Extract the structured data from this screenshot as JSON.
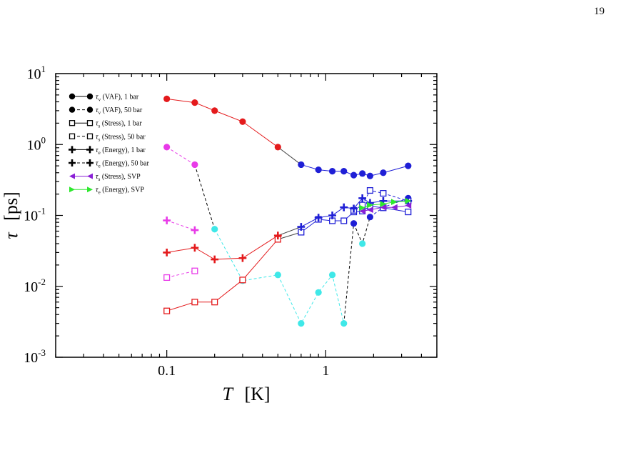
{
  "page": {
    "page_number": "19"
  },
  "colors": {
    "red": "#e41a1c",
    "blue": "#1f1fd6",
    "magenta": "#e83ae8",
    "cyan": "#3fe8e8",
    "purple": "#8a1fd6",
    "green": "#2ee82e",
    "black": "#000000",
    "gray": "#444444"
  },
  "chart_data": {
    "type": "scatter",
    "xlabel": "T",
    "xlabel_unit": "[K]",
    "ylabel": "τ",
    "ylabel_unit": "[ps]",
    "x_scale": "log",
    "y_scale": "log",
    "xlim": [
      0.02,
      5
    ],
    "ylim": [
      0.001,
      10
    ],
    "x_ticks": [
      {
        "value": 0.1,
        "label": "0.1"
      },
      {
        "value": 1,
        "label": "1"
      }
    ],
    "y_ticks": [
      {
        "value": 0.001,
        "base": "10",
        "exp": "-3"
      },
      {
        "value": 0.01,
        "base": "10",
        "exp": "-2"
      },
      {
        "value": 0.1,
        "base": "10",
        "exp": "-1"
      },
      {
        "value": 1,
        "base": "10",
        "exp": "0"
      },
      {
        "value": 10,
        "base": "10",
        "exp": "1"
      }
    ],
    "grid": false,
    "legend_position": "top-left",
    "legend": [
      {
        "sym": "τ",
        "sub": "v",
        "text": "(VAF), 1 bar",
        "marker": "circle",
        "dash": false,
        "color": "#000000"
      },
      {
        "sym": "τ",
        "sub": "v",
        "text": "(VAF), 50 bar",
        "marker": "circle",
        "dash": true,
        "color": "#000000"
      },
      {
        "sym": "τ",
        "sub": "s",
        "text": "(Stress), 1 bar",
        "marker": "square",
        "dash": false,
        "color": "#000000"
      },
      {
        "sym": "τ",
        "sub": "s",
        "text": "(Stress), 50 bar",
        "marker": "square",
        "dash": true,
        "color": "#000000"
      },
      {
        "sym": "τ",
        "sub": "e",
        "text": "(Energy), 1 bar",
        "marker": "plus",
        "dash": false,
        "color": "#000000"
      },
      {
        "sym": "τ",
        "sub": "e",
        "text": "(Energy), 50 bar",
        "marker": "plus",
        "dash": true,
        "color": "#000000"
      },
      {
        "sym": "τ",
        "sub": "s",
        "text": "(Stress), SVP",
        "marker": "tri-left",
        "dash": false,
        "color": "#8a1fd6"
      },
      {
        "sym": "τ",
        "sub": "e",
        "text": "(Energy), SVP",
        "marker": "tri-right",
        "dash": false,
        "color": "#2ee82e"
      }
    ],
    "series": [
      {
        "name": "τv (VAF), 1 bar",
        "marker": "circle",
        "dash": false,
        "line_color": "#444444",
        "points": [
          {
            "x": 0.1,
            "y": 4.4,
            "c": "#e41a1c"
          },
          {
            "x": 0.15,
            "y": 3.9,
            "c": "#e41a1c"
          },
          {
            "x": 0.2,
            "y": 3.0,
            "c": "#e41a1c"
          },
          {
            "x": 0.3,
            "y": 2.1,
            "c": "#e41a1c"
          },
          {
            "x": 0.5,
            "y": 0.92,
            "c": "#e41a1c"
          },
          {
            "x": 0.7,
            "y": 0.52,
            "c": "#1f1fd6"
          },
          {
            "x": 0.9,
            "y": 0.44,
            "c": "#1f1fd6"
          },
          {
            "x": 1.1,
            "y": 0.42,
            "c": "#1f1fd6"
          },
          {
            "x": 1.3,
            "y": 0.42,
            "c": "#1f1fd6"
          },
          {
            "x": 1.5,
            "y": 0.37,
            "c": "#1f1fd6"
          },
          {
            "x": 1.7,
            "y": 0.39,
            "c": "#1f1fd6"
          },
          {
            "x": 1.9,
            "y": 0.36,
            "c": "#1f1fd6"
          },
          {
            "x": 2.3,
            "y": 0.4,
            "c": "#1f1fd6"
          },
          {
            "x": 3.3,
            "y": 0.5,
            "c": "#1f1fd6"
          }
        ],
        "segments": [
          {
            "from": 0,
            "to": 4,
            "color": "#e41a1c"
          },
          {
            "from": 4,
            "to": 5,
            "color": "#444444"
          },
          {
            "from": 5,
            "to": 13,
            "color": "#1f1fd6"
          }
        ]
      },
      {
        "name": "τv (VAF), 50 bar",
        "marker": "circle",
        "dash": true,
        "points": [
          {
            "x": 0.1,
            "y": 0.92,
            "c": "#e83ae8"
          },
          {
            "x": 0.15,
            "y": 0.52,
            "c": "#e83ae8"
          },
          {
            "x": 0.2,
            "y": 0.064,
            "c": "#3fe8e8"
          },
          {
            "x": 0.3,
            "y": 0.012,
            "c": "#3fe8e8"
          },
          {
            "x": 0.5,
            "y": 0.0145,
            "c": "#3fe8e8"
          },
          {
            "x": 0.7,
            "y": 0.003,
            "c": "#3fe8e8"
          },
          {
            "x": 0.9,
            "y": 0.0082,
            "c": "#3fe8e8"
          },
          {
            "x": 1.1,
            "y": 0.0145,
            "c": "#3fe8e8"
          },
          {
            "x": 1.3,
            "y": 0.003,
            "c": "#3fe8e8"
          },
          {
            "x": 1.5,
            "y": 0.077,
            "c": "#1f1fd6"
          },
          {
            "x": 1.7,
            "y": 0.04,
            "c": "#3fe8e8"
          },
          {
            "x": 1.9,
            "y": 0.095,
            "c": "#1f1fd6"
          },
          {
            "x": 2.3,
            "y": 0.13,
            "c": "#1f1fd6"
          },
          {
            "x": 3.3,
            "y": 0.175,
            "c": "#1f1fd6"
          }
        ],
        "segments": [
          {
            "from": 0,
            "to": 1,
            "color": "#e83ae8"
          },
          {
            "from": 1,
            "to": 2,
            "color": "#000000"
          },
          {
            "from": 2,
            "to": 8,
            "color": "#3fe8e8"
          },
          {
            "from": 8,
            "to": 9,
            "color": "#000000"
          },
          {
            "from": 9,
            "to": 11,
            "color": "#000000"
          },
          {
            "from": 11,
            "to": 13,
            "color": "#1f1fd6"
          }
        ]
      },
      {
        "name": "τs (Stress), 1 bar",
        "marker": "square",
        "dash": false,
        "points": [
          {
            "x": 0.1,
            "y": 0.0045,
            "c": "#e41a1c"
          },
          {
            "x": 0.15,
            "y": 0.006,
            "c": "#e41a1c"
          },
          {
            "x": 0.2,
            "y": 0.006,
            "c": "#e41a1c"
          },
          {
            "x": 0.3,
            "y": 0.0123,
            "c": "#e41a1c"
          },
          {
            "x": 0.5,
            "y": 0.046,
            "c": "#e41a1c"
          },
          {
            "x": 0.7,
            "y": 0.058,
            "c": "#1f1fd6"
          },
          {
            "x": 0.9,
            "y": 0.088,
            "c": "#1f1fd6"
          },
          {
            "x": 1.1,
            "y": 0.084,
            "c": "#1f1fd6"
          },
          {
            "x": 1.3,
            "y": 0.084,
            "c": "#1f1fd6"
          },
          {
            "x": 1.5,
            "y": 0.112,
            "c": "#1f1fd6"
          },
          {
            "x": 1.7,
            "y": 0.115,
            "c": "#1f1fd6"
          },
          {
            "x": 1.9,
            "y": 0.135,
            "c": "#1f1fd6"
          },
          {
            "x": 2.3,
            "y": 0.128,
            "c": "#1f1fd6"
          },
          {
            "x": 3.3,
            "y": 0.112,
            "c": "#1f1fd6"
          }
        ],
        "segments": [
          {
            "from": 0,
            "to": 4,
            "color": "#e41a1c"
          },
          {
            "from": 4,
            "to": 5,
            "color": "#444444"
          },
          {
            "from": 5,
            "to": 13,
            "color": "#1f1fd6"
          }
        ]
      },
      {
        "name": "τs (Stress), 50 bar",
        "marker": "square",
        "dash": true,
        "points": [
          {
            "x": 0.1,
            "y": 0.0133,
            "c": "#e83ae8"
          },
          {
            "x": 0.15,
            "y": 0.0165,
            "c": "#e83ae8"
          },
          {
            "x": 1.5,
            "y": 0.118,
            "c": "#1f1fd6"
          },
          {
            "x": 1.7,
            "y": 0.14,
            "c": "#1f1fd6"
          },
          {
            "x": 1.9,
            "y": 0.225,
            "c": "#1f1fd6"
          },
          {
            "x": 2.3,
            "y": 0.205,
            "c": "#1f1fd6"
          },
          {
            "x": 3.3,
            "y": 0.16,
            "c": "#1f1fd6"
          }
        ],
        "segments": [
          {
            "from": 0,
            "to": 1,
            "color": "#e83ae8"
          },
          {
            "from": 2,
            "to": 6,
            "color": "#1f1fd6"
          }
        ]
      },
      {
        "name": "τe (Energy), 1 bar",
        "marker": "plus",
        "dash": false,
        "points": [
          {
            "x": 0.1,
            "y": 0.03,
            "c": "#e41a1c"
          },
          {
            "x": 0.15,
            "y": 0.035,
            "c": "#e41a1c"
          },
          {
            "x": 0.2,
            "y": 0.024,
            "c": "#e41a1c"
          },
          {
            "x": 0.3,
            "y": 0.025,
            "c": "#e41a1c"
          },
          {
            "x": 0.5,
            "y": 0.052,
            "c": "#e41a1c"
          },
          {
            "x": 0.7,
            "y": 0.069,
            "c": "#1f1fd6"
          },
          {
            "x": 0.9,
            "y": 0.093,
            "c": "#1f1fd6"
          },
          {
            "x": 1.1,
            "y": 0.1,
            "c": "#1f1fd6"
          },
          {
            "x": 1.3,
            "y": 0.13,
            "c": "#1f1fd6"
          },
          {
            "x": 1.5,
            "y": 0.125,
            "c": "#1f1fd6"
          },
          {
            "x": 1.7,
            "y": 0.175,
            "c": "#1f1fd6"
          },
          {
            "x": 1.9,
            "y": 0.15,
            "c": "#1f1fd6"
          },
          {
            "x": 2.3,
            "y": 0.16,
            "c": "#1f1fd6"
          },
          {
            "x": 3.3,
            "y": 0.16,
            "c": "#1f1fd6"
          }
        ],
        "segments": [
          {
            "from": 0,
            "to": 4,
            "color": "#e41a1c"
          },
          {
            "from": 4,
            "to": 5,
            "color": "#444444"
          },
          {
            "from": 5,
            "to": 13,
            "color": "#1f1fd6"
          }
        ]
      },
      {
        "name": "τe (Energy), 50 bar",
        "marker": "plus",
        "dash": true,
        "points": [
          {
            "x": 0.1,
            "y": 0.085,
            "c": "#e83ae8"
          },
          {
            "x": 0.15,
            "y": 0.062,
            "c": "#e83ae8"
          }
        ],
        "segments": [
          {
            "from": 0,
            "to": 1,
            "color": "#e83ae8"
          }
        ]
      },
      {
        "name": "τs (Stress), SVP",
        "marker": "tri-left",
        "dash": false,
        "points": [
          {
            "x": 1.7,
            "y": 0.115,
            "c": "#8a1fd6"
          },
          {
            "x": 1.9,
            "y": 0.12,
            "c": "#8a1fd6"
          },
          {
            "x": 2.3,
            "y": 0.13,
            "c": "#8a1fd6"
          },
          {
            "x": 2.7,
            "y": 0.13,
            "c": "#8a1fd6"
          },
          {
            "x": 3.3,
            "y": 0.138,
            "c": "#8a1fd6"
          }
        ],
        "segments": [
          {
            "from": 0,
            "to": 4,
            "color": "#8a1fd6"
          }
        ]
      },
      {
        "name": "τe (Energy), SVP",
        "marker": "tri-right",
        "dash": false,
        "points": [
          {
            "x": 1.7,
            "y": 0.128,
            "c": "#2ee82e"
          },
          {
            "x": 1.9,
            "y": 0.14,
            "c": "#2ee82e"
          },
          {
            "x": 2.3,
            "y": 0.145,
            "c": "#2ee82e"
          },
          {
            "x": 2.7,
            "y": 0.155,
            "c": "#2ee82e"
          },
          {
            "x": 3.3,
            "y": 0.16,
            "c": "#2ee82e"
          }
        ],
        "segments": [
          {
            "from": 0,
            "to": 4,
            "color": "#2ee82e"
          }
        ]
      }
    ]
  }
}
